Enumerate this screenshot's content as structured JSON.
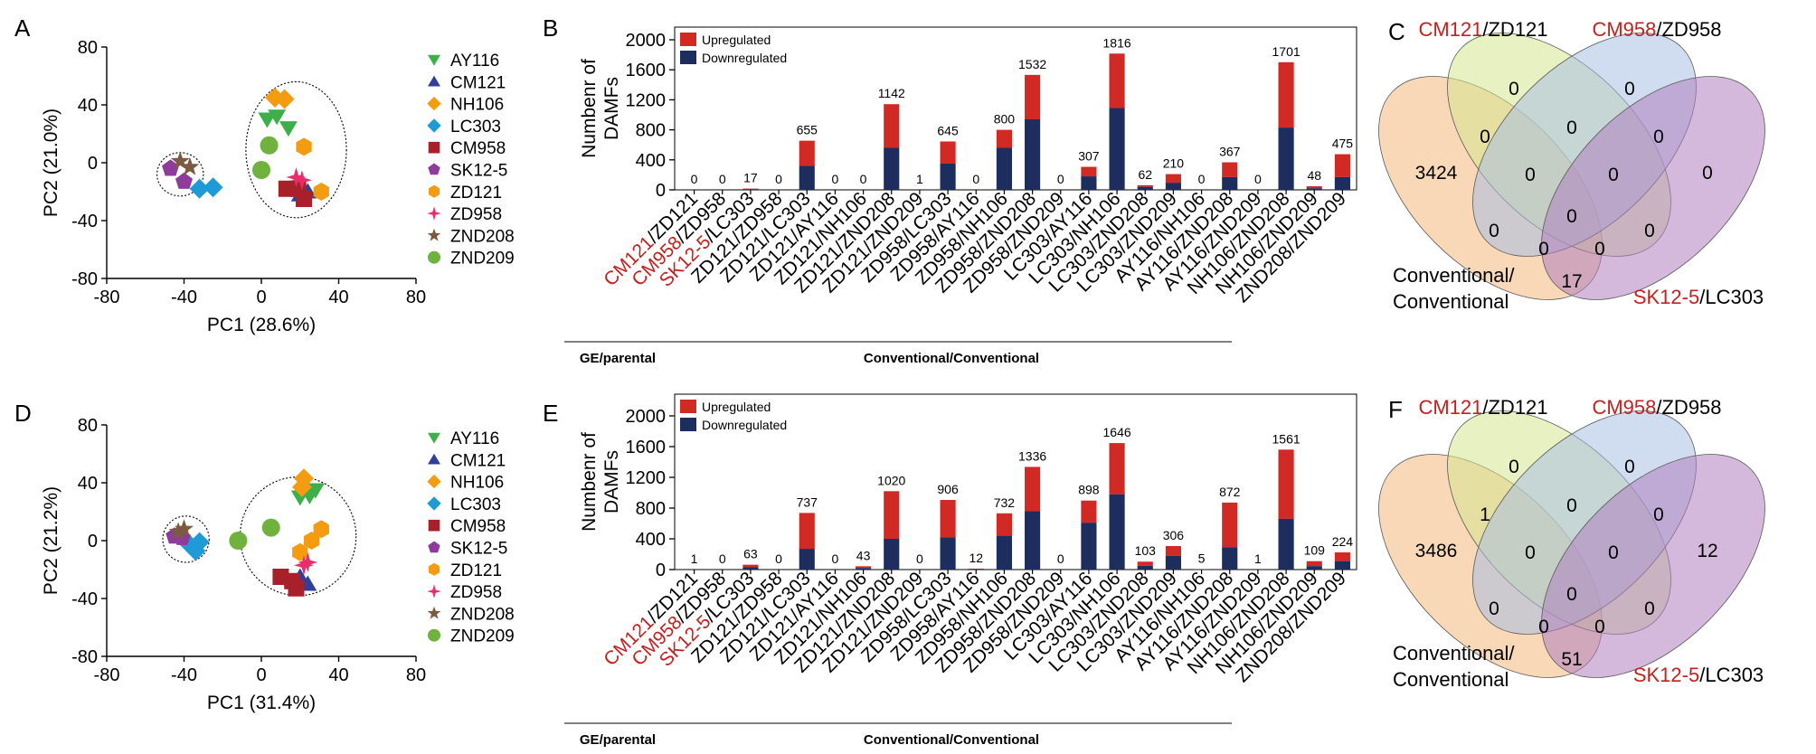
{
  "panels": {
    "A": "A",
    "B": "B",
    "C": "C",
    "D": "D",
    "E": "E",
    "F": "F"
  },
  "colors": {
    "up": "#d12a25",
    "down": "#1c2d5e",
    "red_text": "#c3211f"
  },
  "legend_points": [
    {
      "name": "AY116",
      "color": "#3daf4a",
      "marker": "triangle-down",
      "red": false
    },
    {
      "name": "CM121",
      "color": "#2f3f9b",
      "marker": "triangle-up",
      "red": true
    },
    {
      "name": "NH106",
      "color": "#f39c12",
      "marker": "diamond",
      "red": false
    },
    {
      "name": "LC303",
      "color": "#1e9ad6",
      "marker": "diamond",
      "red": true
    },
    {
      "name": "CM958",
      "color": "#a8202a",
      "marker": "square",
      "red": false
    },
    {
      "name": "SK12-5",
      "color": "#8e3b9b",
      "marker": "pentagon",
      "red": true
    },
    {
      "name": "ZD121",
      "color": "#f39c12",
      "marker": "hexagon",
      "red": false
    },
    {
      "name": "ZD958",
      "color": "#e62e6b",
      "marker": "star4",
      "red": false
    },
    {
      "name": "ZND208",
      "color": "#7b5a41",
      "marker": "star5",
      "red": false
    },
    {
      "name": "ZND209",
      "color": "#6fb33e",
      "marker": "circle",
      "red": false
    }
  ],
  "group_labels": {
    "ge": "GE/parental",
    "conv": "Conventional/Conventional"
  },
  "chart_data": [
    {
      "panel": "A",
      "type": "scatter",
      "xlabel": "PC1 (28.6%)",
      "ylabel": "PC2 (21.0%)",
      "xlim": [
        -80,
        80
      ],
      "ylim": [
        -80,
        80
      ],
      "xticks": [
        "-80",
        "-40",
        "0",
        "40",
        "80"
      ],
      "yticks": [
        "80",
        "40",
        "0",
        "-40",
        "-80"
      ],
      "points": [
        {
          "series": "AY116",
          "x": 3,
          "y": 30
        },
        {
          "series": "AY116",
          "x": 8,
          "y": 32
        },
        {
          "series": "AY116",
          "x": 14,
          "y": 24
        },
        {
          "series": "CM121",
          "x": 20,
          "y": -22
        },
        {
          "series": "CM121",
          "x": 24,
          "y": -20
        },
        {
          "series": "NH106",
          "x": 7,
          "y": 45
        },
        {
          "series": "NH106",
          "x": 12,
          "y": 44
        },
        {
          "series": "LC303",
          "x": -32,
          "y": -18
        },
        {
          "series": "LC303",
          "x": -25,
          "y": -17
        },
        {
          "series": "CM958",
          "x": 13,
          "y": -18
        },
        {
          "series": "CM958",
          "x": 19,
          "y": -18
        },
        {
          "series": "CM958",
          "x": 22,
          "y": -25
        },
        {
          "series": "SK12-5",
          "x": -47,
          "y": -4
        },
        {
          "series": "SK12-5",
          "x": -40,
          "y": -13
        },
        {
          "series": "ZD121",
          "x": 22,
          "y": 11
        },
        {
          "series": "ZD121",
          "x": 31,
          "y": -20
        },
        {
          "series": "ZD958",
          "x": 18,
          "y": -10
        },
        {
          "series": "ZD958",
          "x": 21,
          "y": -12
        },
        {
          "series": "ZND208",
          "x": -42,
          "y": 1
        },
        {
          "series": "ZND208",
          "x": -37,
          "y": -3
        },
        {
          "series": "ZND209",
          "x": 4,
          "y": 12
        },
        {
          "series": "ZND209",
          "x": 0,
          "y": -5
        }
      ],
      "ellipses": [
        {
          "cx": -42,
          "cy": -8,
          "rx": 12,
          "ry": 15
        },
        {
          "cx": 18,
          "cy": 9,
          "rx": 26,
          "ry": 47
        }
      ]
    },
    {
      "panel": "B",
      "type": "bar",
      "stacked": true,
      "ylabel": "Numbenr of\nDAMFs",
      "ylim": [
        0,
        2000
      ],
      "yticks": [
        "0",
        "400",
        "800",
        "1200",
        "1600",
        "2000"
      ],
      "legend": [
        "Upregulated",
        "Downregulated"
      ],
      "categories": [
        "CM121/ZD121",
        "CM958/ZD958",
        "SK12-5/LC303",
        "ZD121/ZD958",
        "ZD121/LC303",
        "ZD121/AY116",
        "ZD121/NH106",
        "ZD121/ZND208",
        "ZD121/ZND209",
        "ZD958/LC303",
        "ZD958/AY116",
        "ZD958/NH106",
        "ZD958/ZND208",
        "ZD958/ZND209",
        "LC303/AY116",
        "LC303/NH106",
        "LC303/ZND208",
        "LC303/ZND209",
        "AY116/NH106",
        "AY116/ZND208",
        "AY116/ZND209",
        "NH106/ZND208",
        "NH106/ZND209",
        "ZND208/ZND209"
      ],
      "totals": [
        0,
        0,
        17,
        0,
        655,
        0,
        0,
        1142,
        1,
        645,
        0,
        800,
        1532,
        0,
        307,
        1816,
        62,
        210,
        0,
        367,
        0,
        1701,
        48,
        475
      ],
      "downregulated": [
        0,
        0,
        10,
        0,
        320,
        0,
        0,
        560,
        1,
        350,
        0,
        560,
        940,
        0,
        180,
        1090,
        40,
        95,
        0,
        170,
        0,
        830,
        20,
        170
      ]
    },
    {
      "panel": "C",
      "type": "venn",
      "sets": [
        {
          "label_red": "",
          "label_black": "Conventional/\nConventional",
          "color": "#f4b87b"
        },
        {
          "label_red": "CM121",
          "label_black": "/ZD121",
          "color": "#d6e58f"
        },
        {
          "label_red": "CM958",
          "label_black": "/ZD958",
          "color": "#a9bfe3"
        },
        {
          "label_red": "SK12-5",
          "label_black": "/LC303",
          "color": "#b07fc0"
        }
      ],
      "values": {
        "o_only": "3424",
        "g_only": "0",
        "b_only": "0",
        "p_only": "0",
        "og": "0",
        "gb": "0",
        "bp": "0",
        "og_b": "0",
        "gb_p": "0",
        "center": "0",
        "o_b": "0",
        "g_p": "0",
        "o_p_left": "0",
        "o_p_right": "0",
        "o_p": "17"
      }
    },
    {
      "panel": "D",
      "type": "scatter",
      "xlabel": "PC1 (31.4%)",
      "ylabel": "PC2 (21.2%)",
      "xlim": [
        -80,
        80
      ],
      "ylim": [
        -80,
        80
      ],
      "xticks": [
        "-80",
        "-40",
        "0",
        "40",
        "80"
      ],
      "yticks": [
        "80",
        "40",
        "0",
        "-40",
        "-80"
      ],
      "points": [
        {
          "series": "AY116",
          "x": 20,
          "y": 30
        },
        {
          "series": "AY116",
          "x": 25,
          "y": 31
        },
        {
          "series": "AY116",
          "x": 28,
          "y": 35
        },
        {
          "series": "CM121",
          "x": 24,
          "y": -30
        },
        {
          "series": "CM121",
          "x": 20,
          "y": -25
        },
        {
          "series": "NH106",
          "x": 22,
          "y": 43
        },
        {
          "series": "NH106",
          "x": 21,
          "y": 37
        },
        {
          "series": "LC303",
          "x": -37,
          "y": -3
        },
        {
          "series": "LC303",
          "x": -32,
          "y": -1
        },
        {
          "series": "LC303",
          "x": -34,
          "y": -7
        },
        {
          "series": "CM958",
          "x": 10,
          "y": -25
        },
        {
          "series": "CM958",
          "x": 16,
          "y": -28
        },
        {
          "series": "CM958",
          "x": 18,
          "y": -33
        },
        {
          "series": "SK12-5",
          "x": -45,
          "y": 3
        },
        {
          "series": "SK12-5",
          "x": -41,
          "y": 2
        },
        {
          "series": "ZD121",
          "x": 31,
          "y": 8
        },
        {
          "series": "ZD121",
          "x": 26,
          "y": 0
        },
        {
          "series": "ZD121",
          "x": 20,
          "y": -8
        },
        {
          "series": "ZD958",
          "x": 22,
          "y": -17
        },
        {
          "series": "ZD958",
          "x": 24,
          "y": -15
        },
        {
          "series": "ZND208",
          "x": -43,
          "y": 6
        },
        {
          "series": "ZND208",
          "x": -40,
          "y": 8
        },
        {
          "series": "ZND209",
          "x": -12,
          "y": 0
        },
        {
          "series": "ZND209",
          "x": 5,
          "y": 9
        }
      ],
      "ellipses": [
        {
          "cx": -39,
          "cy": 1,
          "rx": 12,
          "ry": 16
        },
        {
          "cx": 19,
          "cy": 3,
          "rx": 30,
          "ry": 41
        }
      ]
    },
    {
      "panel": "E",
      "type": "bar",
      "stacked": true,
      "ylabel": "Numbenr of\nDAMFs",
      "ylim": [
        0,
        2000
      ],
      "yticks": [
        "0",
        "400",
        "800",
        "1200",
        "1600",
        "2000"
      ],
      "legend": [
        "Upregulated",
        "Downregulated"
      ],
      "categories": [
        "CM121/ZD121",
        "CM958/ZD958",
        "SK12-5/LC303",
        "ZD121/ZD958",
        "ZD121/LC303",
        "ZD121/AY116",
        "ZD121/NH106",
        "ZD121/ZND208",
        "ZD121/ZND209",
        "ZD958/LC303",
        "ZD958/AY116",
        "ZD958/NH106",
        "ZD958/ZND208",
        "ZD958/ZND209",
        "LC303/AY116",
        "LC303/NH106",
        "LC303/ZND208",
        "LC303/ZND209",
        "AY116/NH106",
        "AY116/ZND208",
        "AY116/ZND209",
        "NH106/ZND208",
        "NH106/ZND209",
        "ZND208/ZND209"
      ],
      "totals": [
        1,
        0,
        63,
        0,
        737,
        0,
        43,
        1020,
        0,
        906,
        12,
        732,
        1336,
        0,
        898,
        1646,
        103,
        306,
        5,
        872,
        1,
        1561,
        109,
        224
      ],
      "downregulated": [
        1,
        0,
        30,
        0,
        270,
        0,
        20,
        400,
        0,
        420,
        6,
        440,
        760,
        0,
        610,
        980,
        50,
        180,
        3,
        290,
        1,
        660,
        45,
        110
      ]
    },
    {
      "panel": "F",
      "type": "venn",
      "sets": [
        {
          "label_red": "",
          "label_black": "Conventional/\nConventional",
          "color": "#f4b87b"
        },
        {
          "label_red": "CM121",
          "label_black": "/ZD121",
          "color": "#d6e58f"
        },
        {
          "label_red": "CM958",
          "label_black": "/ZD958",
          "color": "#a9bfe3"
        },
        {
          "label_red": "SK12-5",
          "label_black": "/LC303",
          "color": "#b07fc0"
        }
      ],
      "values": {
        "o_only": "3486",
        "g_only": "0",
        "b_only": "0",
        "p_only": "12",
        "og": "1",
        "gb": "0",
        "bp": "0",
        "og_b": "0",
        "gb_p": "0",
        "center": "0",
        "o_b": "0",
        "g_p": "0",
        "o_p_left": "0",
        "o_p_right": "0",
        "o_p": "51"
      }
    }
  ]
}
